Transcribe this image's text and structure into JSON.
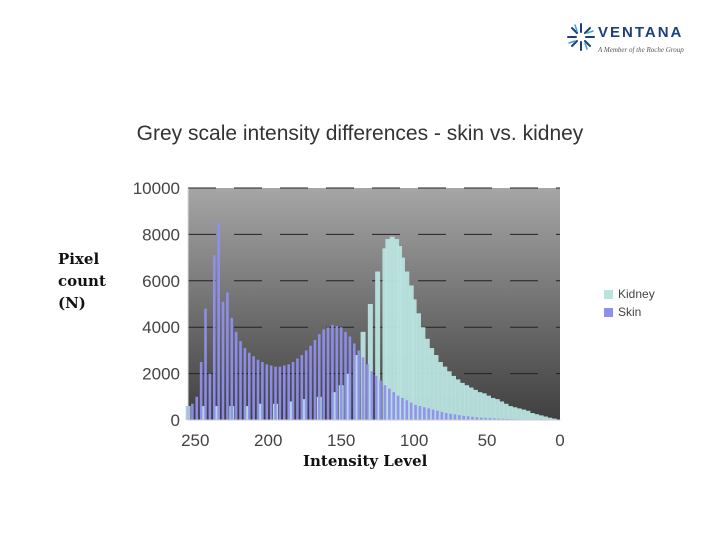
{
  "logo": {
    "name": "VENTANA",
    "tagline": "A Member of the Roche Group"
  },
  "chart_data": {
    "type": "bar",
    "title": "Grey scale intensity differences - skin vs. kidney",
    "xlabel": "Intensity Level",
    "ylabel_lines": [
      "Pixel",
      "count",
      "(N)"
    ],
    "xlim": [
      255,
      0
    ],
    "xticks": [
      "250",
      "200",
      "150",
      "100",
      "50",
      "0"
    ],
    "xtick_values": [
      250,
      200,
      150,
      100,
      50,
      0
    ],
    "ylim": [
      0,
      10000
    ],
    "yticks": [
      "10000",
      "8000",
      "6000",
      "4000",
      "2000",
      "0"
    ],
    "ytick_values": [
      10000,
      8000,
      6000,
      4000,
      2000,
      0
    ],
    "series": [
      {
        "name": "Kidney",
        "color": "#b9e3df",
        "intensity": [
          255,
          245,
          235,
          225,
          215,
          205,
          195,
          185,
          175,
          165,
          155,
          150,
          145,
          140,
          135,
          130,
          125,
          120,
          118,
          115,
          112,
          110,
          108,
          105,
          102,
          100,
          97,
          94,
          91,
          88,
          85,
          82,
          79,
          76,
          73,
          70,
          67,
          64,
          61,
          58,
          55,
          52,
          49,
          46,
          43,
          40,
          37,
          34,
          31,
          28,
          25,
          22,
          19,
          16,
          13,
          10,
          7,
          4,
          1
        ],
        "values": [
          600,
          600,
          600,
          600,
          600,
          700,
          700,
          800,
          900,
          1000,
          1200,
          1500,
          2000,
          2800,
          3800,
          5000,
          6400,
          7400,
          7800,
          7900,
          7800,
          7500,
          7000,
          6400,
          5800,
          5200,
          4600,
          4000,
          3500,
          3100,
          2800,
          2500,
          2300,
          2100,
          1900,
          1750,
          1600,
          1500,
          1400,
          1300,
          1200,
          1150,
          1050,
          950,
          900,
          800,
          700,
          600,
          550,
          500,
          450,
          400,
          300,
          250,
          200,
          150,
          100,
          60,
          20
        ]
      },
      {
        "name": "Skin",
        "color": "#8f8ff0",
        "intensity": [
          255,
          252,
          249,
          246,
          243,
          240,
          237,
          234,
          231,
          228,
          225,
          222,
          219,
          216,
          213,
          210,
          207,
          204,
          201,
          198,
          195,
          192,
          189,
          186,
          183,
          180,
          177,
          174,
          171,
          168,
          165,
          162,
          159,
          156,
          153,
          150,
          147,
          144,
          141,
          138,
          135,
          132,
          129,
          126,
          123,
          120,
          117,
          114,
          111,
          108,
          105,
          102,
          99,
          96,
          93,
          90,
          87,
          84,
          81,
          78,
          75,
          72,
          69,
          66,
          63,
          60,
          57,
          54,
          51,
          48,
          45,
          42,
          39,
          36,
          33,
          30,
          27,
          24,
          21,
          18,
          15,
          12,
          9,
          6,
          3,
          0
        ],
        "values": [
          600,
          700,
          1000,
          2500,
          4800,
          2000,
          7100,
          8500,
          5100,
          5500,
          4400,
          3800,
          3400,
          3100,
          2900,
          2750,
          2600,
          2500,
          2400,
          2350,
          2300,
          2300,
          2350,
          2400,
          2500,
          2650,
          2800,
          3000,
          3200,
          3450,
          3700,
          3900,
          4000,
          4100,
          4050,
          4000,
          3800,
          3600,
          3300,
          3000,
          2700,
          2400,
          2100,
          1900,
          1700,
          1500,
          1350,
          1200,
          1050,
          950,
          850,
          750,
          650,
          600,
          550,
          500,
          450,
          400,
          350,
          300,
          270,
          240,
          210,
          180,
          160,
          140,
          120,
          100,
          90,
          80,
          70,
          60,
          50,
          40,
          35,
          30,
          25,
          20,
          15,
          12,
          10,
          8,
          6,
          4,
          2,
          0
        ]
      }
    ],
    "legend_position": "right",
    "grid": true
  }
}
